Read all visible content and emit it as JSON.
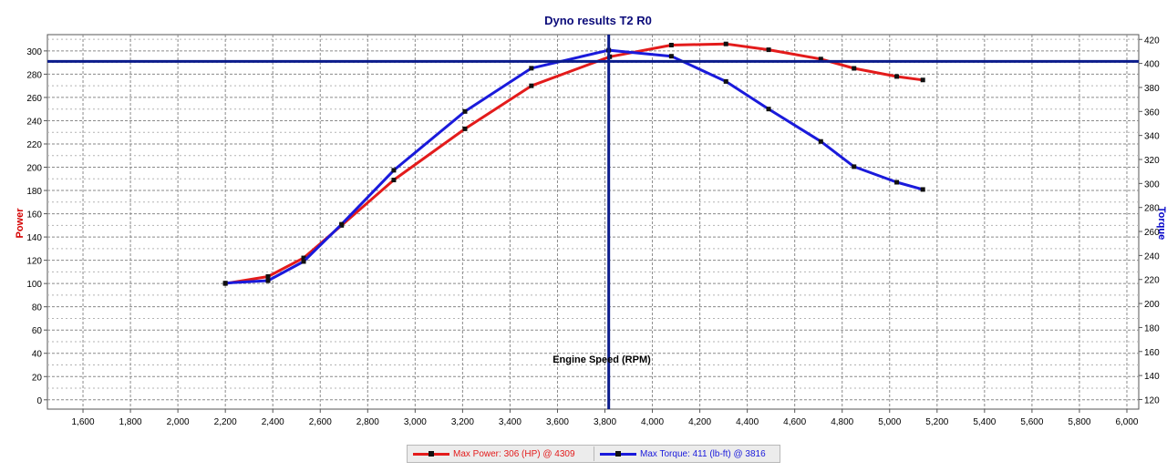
{
  "colors": {
    "power": "#e31b1b",
    "torque": "#1a1adb",
    "power_axis_title": "#d40000",
    "torque_axis_title": "#0000c8",
    "title": "#0c0c7a",
    "crosshair": "#0b1c8c",
    "grid": "#8a8a8a"
  },
  "chart_data": {
    "type": "line",
    "title": "Dyno results T2 R0",
    "xlabel": "Engine Speed (RPM)",
    "ylabel": "Power",
    "y2label": "Torque",
    "xlim": [
      1450,
      6050
    ],
    "ylim": [
      -8,
      314
    ],
    "y2lim": [
      112,
      424
    ],
    "x_ticks": [
      "1,600",
      "1,800",
      "2,000",
      "2,200",
      "2,400",
      "2,600",
      "2,800",
      "3,000",
      "3,200",
      "3,400",
      "3,600",
      "3,800",
      "4,000",
      "4,200",
      "4,400",
      "4,600",
      "4,800",
      "5,000",
      "5,200",
      "5,400",
      "5,600",
      "5,800",
      "6,000"
    ],
    "y_ticks": [
      "0",
      "20",
      "40",
      "60",
      "80",
      "100",
      "120",
      "140",
      "160",
      "180",
      "200",
      "220",
      "240",
      "260",
      "280",
      "300"
    ],
    "y2_ticks": [
      "120",
      "140",
      "160",
      "180",
      "200",
      "220",
      "240",
      "260",
      "280",
      "300",
      "320",
      "340",
      "360",
      "380",
      "400",
      "420"
    ],
    "grid": true,
    "legend_position": "bottom-center",
    "series": [
      {
        "name": "Power",
        "axis": "left",
        "x": [
          2200,
          2380,
          2530,
          2690,
          2910,
          3210,
          3490,
          3820,
          4080,
          4310,
          4490,
          4710,
          4850,
          5030,
          5140
        ],
        "values": [
          100,
          106,
          122,
          150,
          189,
          233,
          270,
          295,
          305,
          306,
          301,
          293,
          285,
          278,
          275
        ]
      },
      {
        "name": "Torque",
        "axis": "right",
        "x": [
          2200,
          2380,
          2530,
          2690,
          2910,
          3210,
          3490,
          3816,
          4080,
          4310,
          4490,
          4710,
          4850,
          5030,
          5140
        ],
        "values": [
          217,
          219,
          235,
          266,
          311,
          360,
          396,
          411,
          406,
          385,
          362,
          335,
          314,
          301,
          295
        ]
      }
    ],
    "cursor": {
      "x": 3816,
      "y_power": 291
    },
    "legend": {
      "power": "Max Power: 306 (HP) @ 4309",
      "torque": "Max Torque: 411 (lb-ft) @ 3816"
    }
  }
}
